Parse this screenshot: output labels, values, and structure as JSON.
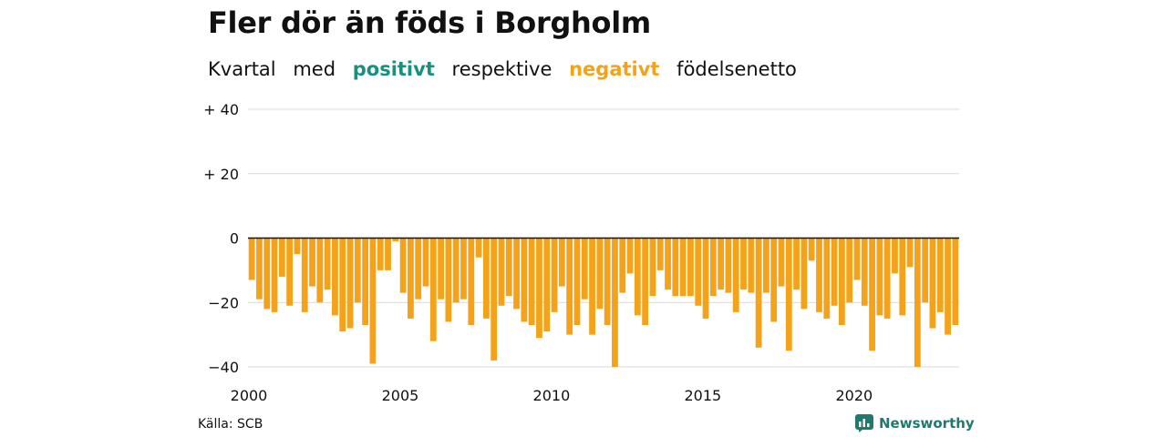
{
  "header": {
    "title": "Fler dör än föds i Borgholm",
    "subtitle": {
      "w1": "Kvartal",
      "w2": "med",
      "positive": "positivt",
      "w3": "respektive",
      "negative": "negativt",
      "w4": "födelsenetto"
    }
  },
  "colors": {
    "positive": "#17917f",
    "negative": "#f4a21a",
    "grid": "#d9d9d9",
    "brand": "#1f7a6d"
  },
  "chart_data": {
    "type": "bar",
    "xlabel": "",
    "ylabel": "",
    "ylim": [
      -40,
      40
    ],
    "y_ticks": [
      {
        "value": 40,
        "label": "+ 40"
      },
      {
        "value": 20,
        "label": "+ 20"
      },
      {
        "value": 0,
        "label": "0"
      },
      {
        "value": -20,
        "label": "−20"
      },
      {
        "value": -40,
        "label": "−40"
      }
    ],
    "x_ticks": [
      {
        "year": 2000,
        "label": "2000"
      },
      {
        "year": 2005,
        "label": "2005"
      },
      {
        "year": 2010,
        "label": "2010"
      },
      {
        "year": 2015,
        "label": "2015"
      },
      {
        "year": 2020,
        "label": "2020"
      }
    ],
    "start_year": 2000,
    "quarters_per_year": 4,
    "values": [
      -13,
      -19,
      -22,
      -23,
      -12,
      -21,
      -5,
      -23,
      -15,
      -20,
      -16,
      -24,
      -29,
      -28,
      -20,
      -27,
      -39,
      -10,
      -10,
      -1,
      -17,
      -25,
      -19,
      -15,
      -32,
      -19,
      -26,
      -20,
      -19,
      -27,
      -6,
      -25,
      -38,
      -21,
      -18,
      -22,
      -26,
      -27,
      -31,
      -29,
      -23,
      -15,
      -30,
      -27,
      -19,
      -30,
      -22,
      -27,
      -40,
      -17,
      -11,
      -24,
      -27,
      -18,
      -10,
      -16,
      -18,
      -18,
      -18,
      -21,
      -25,
      -18,
      -16,
      -17,
      -23,
      -16,
      -17,
      -34,
      -17,
      -26,
      -15,
      -35,
      -16,
      -22,
      -7,
      -23,
      -25,
      -21,
      -27,
      -20,
      -13,
      -21,
      -35,
      -24,
      -25,
      -11,
      -24,
      -9,
      -40,
      -20,
      -28,
      -23,
      -30,
      -27
    ]
  },
  "footer": {
    "source": "Källa: SCB",
    "brand": "Newsworthy",
    "brand_icon": "bar-chart-icon"
  }
}
